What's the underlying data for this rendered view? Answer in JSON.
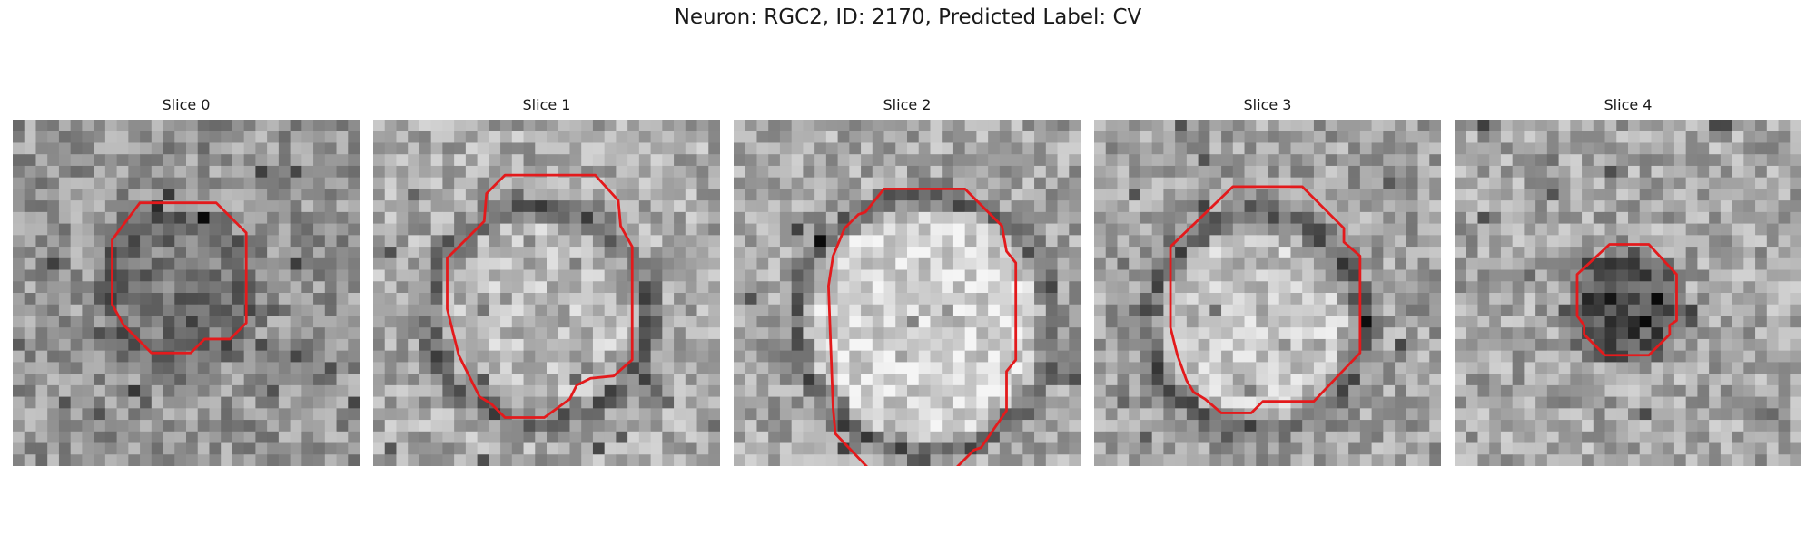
{
  "figure": {
    "title": "Neuron: RGC2, ID: 2170, Predicted Label: CV"
  },
  "panels": [
    {
      "title": "Slice 0",
      "texture_seed": 11,
      "background_gray": 150,
      "ring_strength": 0.35,
      "inside_gray": 120,
      "contour": [
        [
          110,
          72
        ],
        [
          176,
          72
        ],
        [
          202,
          98
        ],
        [
          202,
          176
        ],
        [
          188,
          190
        ],
        [
          166,
          190
        ],
        [
          154,
          202
        ],
        [
          120,
          202
        ],
        [
          96,
          178
        ],
        [
          86,
          160
        ],
        [
          86,
          104
        ]
      ]
    },
    {
      "title": "Slice 1",
      "texture_seed": 23,
      "background_gray": 170,
      "ring_strength": 0.85,
      "inside_gray": 185,
      "contour": [
        [
          114,
          48
        ],
        [
          192,
          48
        ],
        [
          212,
          70
        ],
        [
          214,
          92
        ],
        [
          224,
          110
        ],
        [
          224,
          208
        ],
        [
          208,
          222
        ],
        [
          188,
          224
        ],
        [
          176,
          230
        ],
        [
          170,
          242
        ],
        [
          148,
          258
        ],
        [
          114,
          258
        ],
        [
          102,
          246
        ],
        [
          92,
          240
        ],
        [
          86,
          228
        ],
        [
          74,
          204
        ],
        [
          64,
          164
        ],
        [
          64,
          120
        ],
        [
          96,
          88
        ],
        [
          98,
          64
        ]
      ]
    },
    {
      "title": "Slice 2",
      "texture_seed": 37,
      "background_gray": 165,
      "ring_strength": 1.0,
      "inside_gray": 215,
      "contour": [
        [
          130,
          60
        ],
        [
          200,
          60
        ],
        [
          232,
          92
        ],
        [
          236,
          114
        ],
        [
          244,
          124
        ],
        [
          244,
          208
        ],
        [
          236,
          218
        ],
        [
          236,
          252
        ],
        [
          214,
          284
        ],
        [
          208,
          286
        ],
        [
          180,
          314
        ],
        [
          128,
          314
        ],
        [
          88,
          272
        ],
        [
          86,
          250
        ],
        [
          82,
          144
        ],
        [
          86,
          118
        ],
        [
          96,
          94
        ],
        [
          108,
          82
        ],
        [
          114,
          80
        ]
      ]
    },
    {
      "title": "Slice 3",
      "texture_seed": 53,
      "background_gray": 160,
      "ring_strength": 0.9,
      "inside_gray": 195,
      "contour": [
        [
          120,
          58
        ],
        [
          180,
          58
        ],
        [
          216,
          94
        ],
        [
          216,
          106
        ],
        [
          230,
          118
        ],
        [
          230,
          202
        ],
        [
          190,
          244
        ],
        [
          146,
          244
        ],
        [
          136,
          254
        ],
        [
          110,
          254
        ],
        [
          96,
          242
        ],
        [
          86,
          236
        ],
        [
          80,
          226
        ],
        [
          72,
          204
        ],
        [
          66,
          180
        ],
        [
          66,
          110
        ]
      ]
    },
    {
      "title": "Slice 4",
      "texture_seed": 71,
      "background_gray": 165,
      "ring_strength": 0.2,
      "inside_gray": 85,
      "contour": [
        [
          134,
          108
        ],
        [
          168,
          108
        ],
        [
          192,
          134
        ],
        [
          192,
          174
        ],
        [
          186,
          178
        ],
        [
          186,
          186
        ],
        [
          168,
          204
        ],
        [
          130,
          204
        ],
        [
          112,
          186
        ],
        [
          112,
          178
        ],
        [
          106,
          170
        ],
        [
          106,
          134
        ]
      ]
    }
  ],
  "colors": {
    "contour": "#e31a1c",
    "title_text": "#1a1a1a"
  }
}
